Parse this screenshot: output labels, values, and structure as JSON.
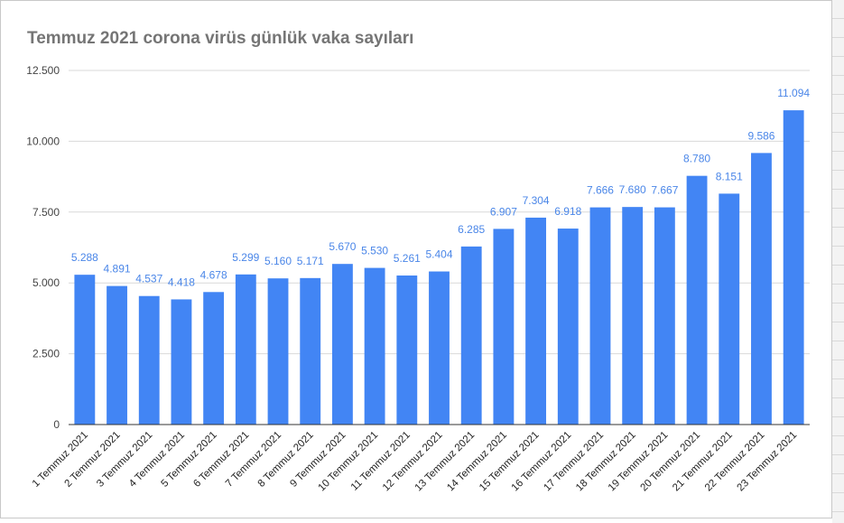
{
  "chart_data": {
    "type": "bar",
    "title": "Temmuz 2021 corona virüs günlük vaka sayıları",
    "xlabel": "",
    "ylabel": "",
    "ylim": [
      0,
      12500
    ],
    "yticks": [
      0,
      2500,
      5000,
      7500,
      10000,
      12500
    ],
    "ytick_labels": [
      "0",
      "2.500",
      "5.000",
      "7.500",
      "10.000",
      "12.500"
    ],
    "grid": true,
    "bar_color": "#4285f4",
    "label_color": "#4a86e8",
    "categories": [
      "1 Temmuz 2021",
      "2 Temmuz 2021",
      "3 Temmuz 2021",
      "4 Temmuz 2021",
      "5 Temmuz 2021",
      "6 Temmuz 2021",
      "7 Temmuz 2021",
      "8 Temmuz 2021",
      "9 Temmuz 2021",
      "10 Temmuz 2021",
      "11 Temmuz 2021",
      "12 Temmuz 2021",
      "13 Temmuz 2021",
      "14 Temmuz 2021",
      "15 Temmuz 2021",
      "16 Temmuz 2021",
      "17 Temmuz 2021",
      "18 Temmuz 2021",
      "19 Temmuz 2021",
      "20 Temmuz 2021",
      "21 Temmuz 2021",
      "22 Temmuz 2021",
      "23 Temmuz 2021"
    ],
    "values": [
      5288,
      4891,
      4537,
      4418,
      4678,
      5299,
      5160,
      5171,
      5670,
      5530,
      5261,
      5404,
      6285,
      6907,
      7304,
      6918,
      7666,
      7680,
      7667,
      8780,
      8151,
      9586,
      11094
    ],
    "value_labels": [
      "5.288",
      "4.891",
      "4.537",
      "4.418",
      "4.678",
      "5.299",
      "5.160",
      "5.171",
      "5.670",
      "5.530",
      "5.261",
      "5.404",
      "6.285",
      "6.907",
      "7.304",
      "6.918",
      "7.666",
      "7.680",
      "7.667",
      "8.780",
      "8.151",
      "9.586",
      "11.094"
    ]
  }
}
